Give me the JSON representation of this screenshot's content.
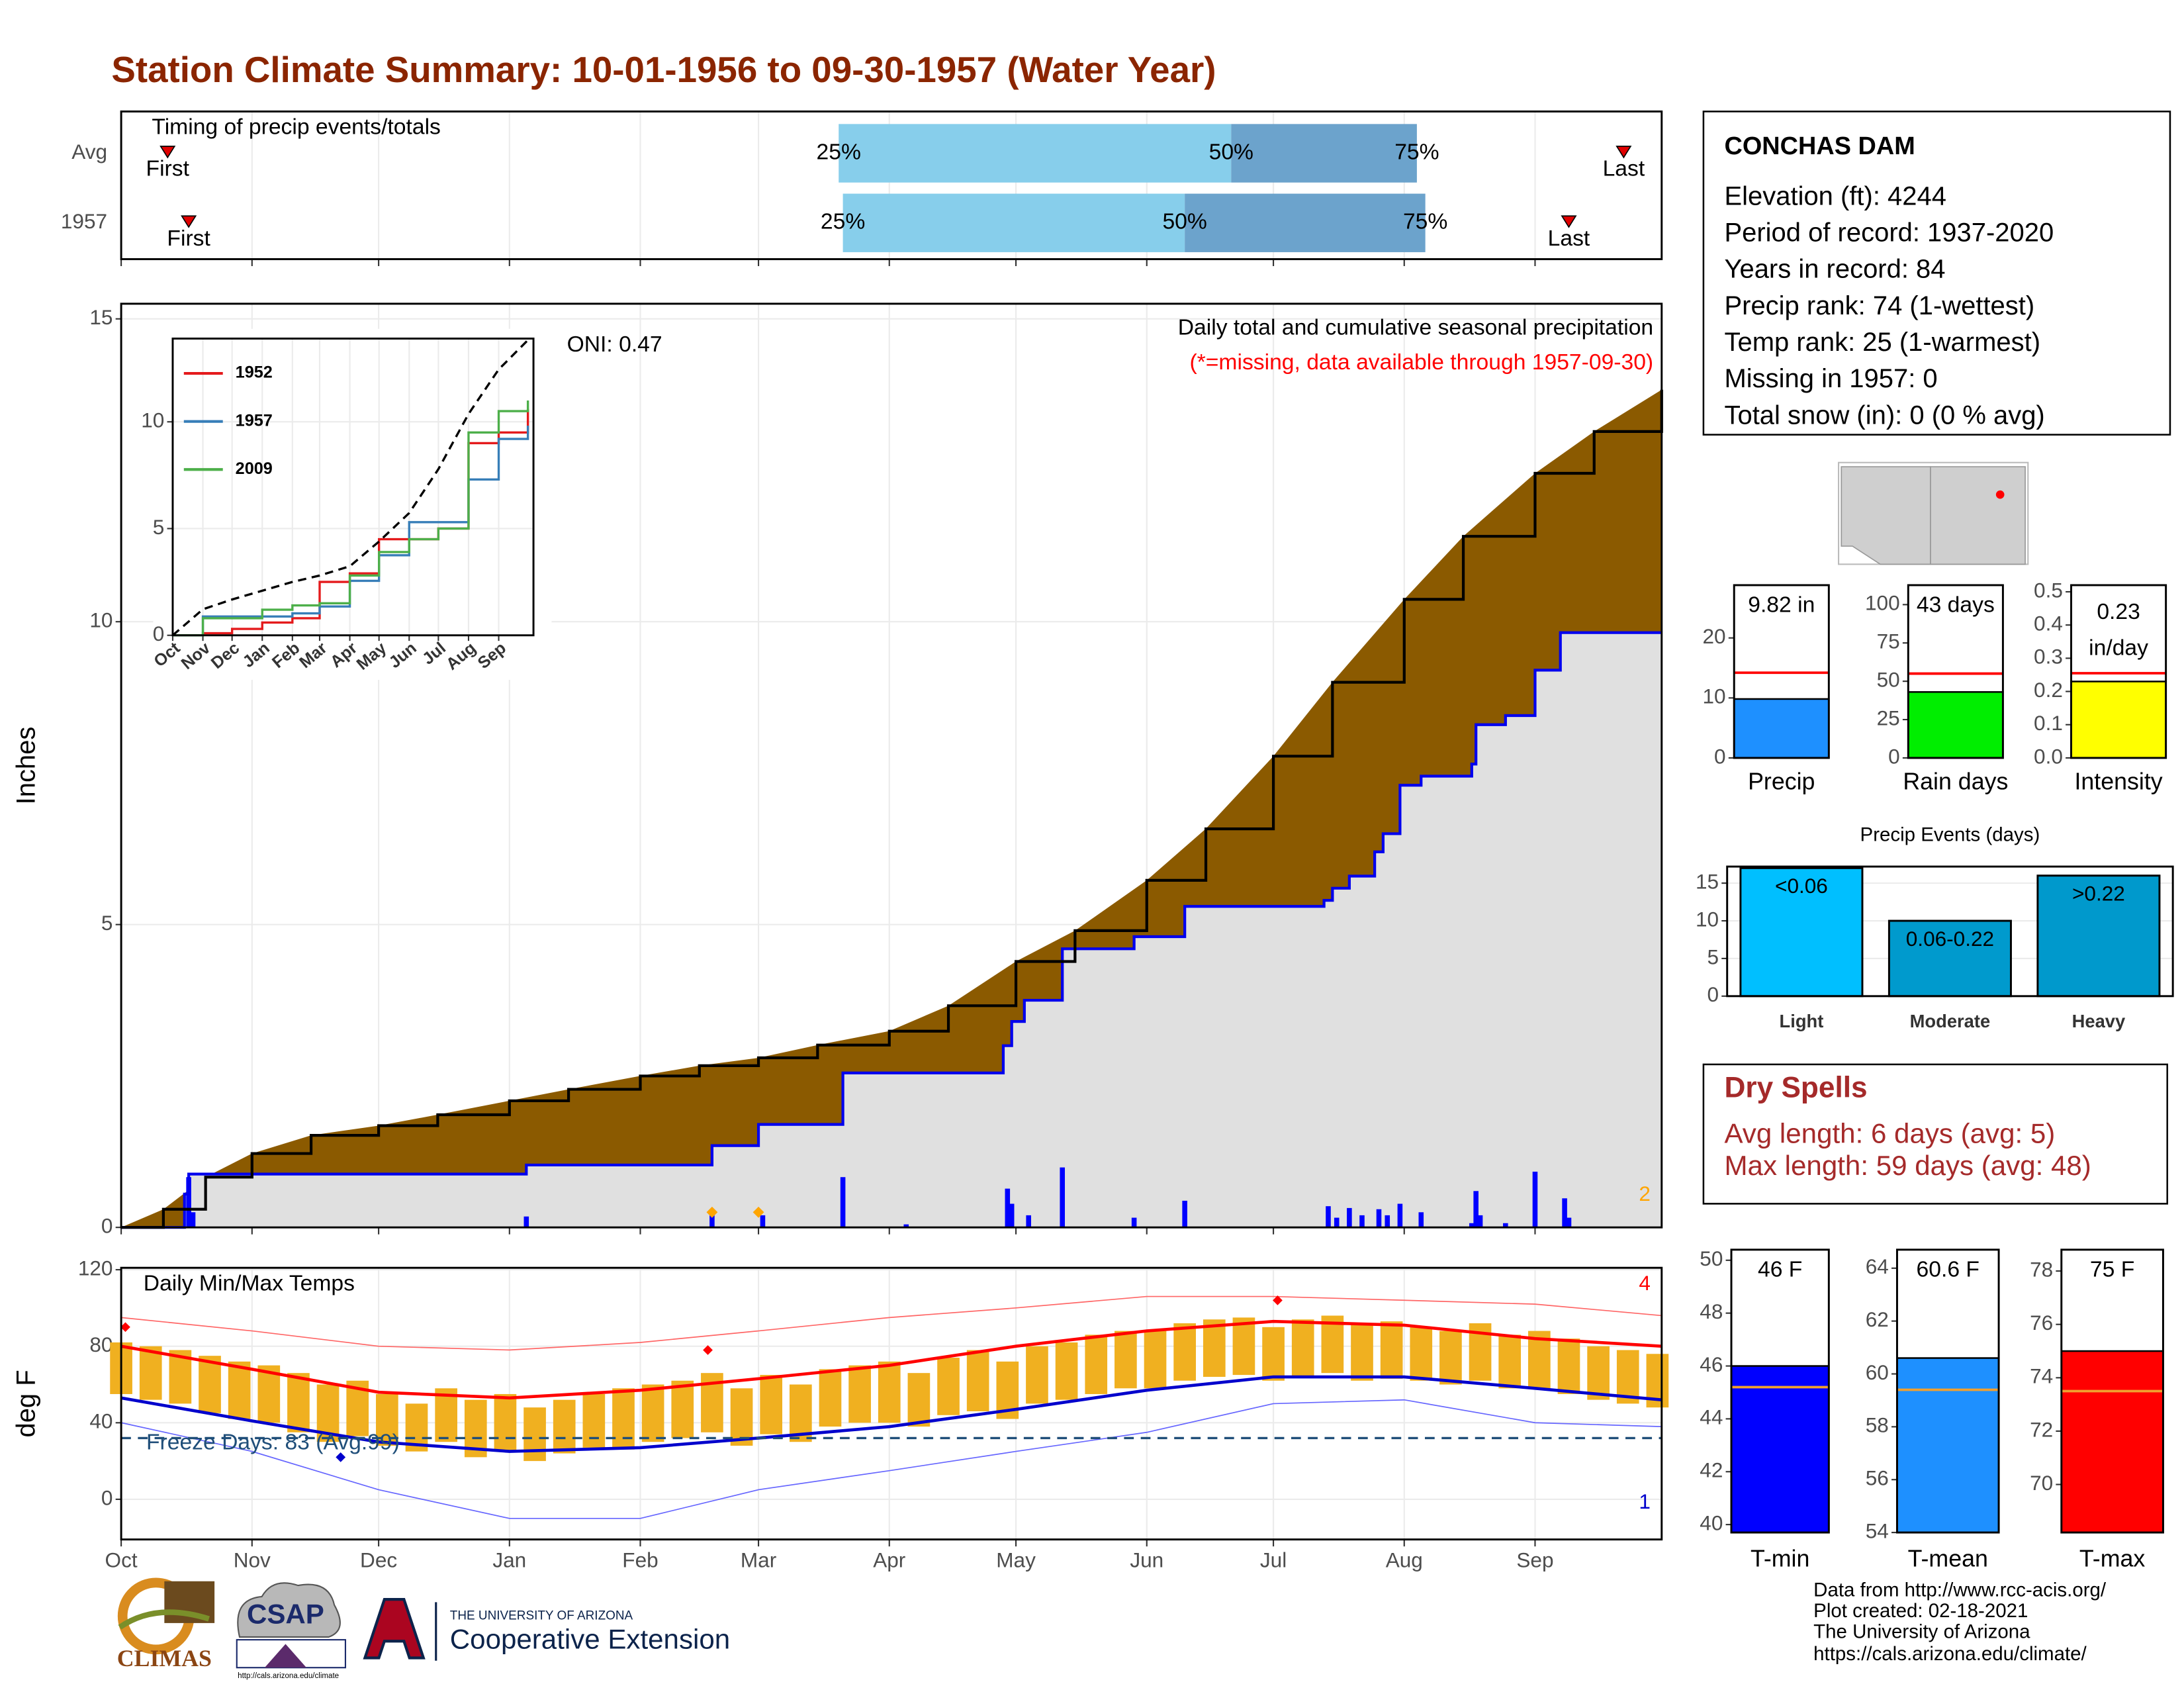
{
  "title": "Station Climate Summary: 10-01-1956 to 09-30-1957 (Water Year)",
  "station": {
    "name": "CONCHAS DAM",
    "lines": [
      "Elevation (ft): 4244",
      "Period of record: 1937-2020",
      "Years in record: 84",
      "Precip rank: 74 (1-wettest)",
      "Temp rank: 25 (1-warmest)",
      "Missing in 1957: 0",
      "Total snow (in): 0 (0 % avg)"
    ]
  },
  "dry_spells": {
    "title": "Dry Spells",
    "lines": [
      "Avg length: 6 days (avg: 5)",
      "Max length: 59 days (avg: 48)"
    ]
  },
  "credits": [
    "Data from http://www.rcc-acis.org/",
    "Plot created: 02-18-2021",
    "The University of Arizona",
    "https://cals.arizona.edu/climate/"
  ],
  "logos": {
    "climas": "CLIMAS",
    "csap": "CSAP",
    "csap_url": "http://cals.arizona.edu/climate",
    "ua": "THE UNIVERSITY OF ARIZONA",
    "extension": "Cooperative Extension"
  },
  "chart_data": [
    {
      "type": "timing",
      "title": "Timing of precip events/totals",
      "xlim": [
        0,
        365
      ],
      "series": [
        {
          "name": "Avg",
          "values": [
            11,
            170,
            263,
            307,
            356
          ],
          "value_labels": [
            "First",
            "25%",
            "50%",
            "75%",
            "Last"
          ]
        },
        {
          "name": "1957",
          "values": [
            16,
            171,
            252,
            309,
            343
          ],
          "value_labels": [
            "First",
            "25%",
            "50%",
            "75%",
            "Last"
          ]
        }
      ],
      "colors": [
        "#87ceeb",
        "#6ca3cc",
        "#e00000"
      ]
    },
    {
      "type": "cumulative",
      "title": "Daily total and cumulative seasonal precipitation",
      "subtitle": "(*=missing, data available through 1957-09-30)",
      "y_label": "Inches",
      "oni": "ONI: 0.47",
      "note": "2",
      "xlim": [
        0,
        365
      ],
      "ylim": [
        0,
        15.25
      ],
      "yticks": [
        0,
        5,
        10,
        15
      ],
      "grid": true,
      "average": {
        "color": "#8b5a00",
        "x": [
          0,
          10,
          20,
          31,
          45,
          61,
          75,
          92,
          106,
          123,
          137,
          151,
          165,
          182,
          196,
          212,
          226,
          243,
          257,
          273,
          287,
          304,
          318,
          335,
          349,
          365
        ],
        "values": [
          0,
          0.3,
          0.83,
          1.22,
          1.52,
          1.68,
          1.86,
          2.09,
          2.28,
          2.5,
          2.67,
          2.8,
          3.01,
          3.24,
          3.66,
          4.39,
          4.9,
          5.73,
          6.58,
          7.78,
          9.0,
          10.37,
          11.41,
          12.45,
          13.14,
          13.83
        ]
      },
      "year": {
        "color": "#0000ee",
        "fill": "#e0e0e0",
        "x": [
          0,
          15,
          16,
          96,
          140,
          151,
          171,
          209,
          211,
          214,
          223,
          240,
          252,
          285,
          287,
          291,
          297,
          299,
          303,
          308,
          320,
          321,
          328,
          335,
          341,
          365
        ],
        "values": [
          0,
          0.55,
          0.88,
          1.03,
          1.35,
          1.7,
          2.55,
          3.0,
          3.4,
          3.75,
          4.6,
          4.8,
          5.3,
          5.4,
          5.6,
          5.8,
          6.2,
          6.5,
          7.3,
          7.45,
          7.65,
          8.3,
          8.45,
          9.2,
          9.82,
          9.82
        ]
      },
      "daily": {
        "color": "#0000ff",
        "x": [
          16,
          17,
          96,
          140,
          152,
          171,
          186,
          210,
          211,
          215,
          223,
          240,
          252,
          286,
          288,
          291,
          294,
          298,
          300,
          303,
          308,
          320,
          321,
          322,
          328,
          335,
          342,
          343
        ],
        "values": [
          0.83,
          0.25,
          0.18,
          0.2,
          0.2,
          0.83,
          0.05,
          0.64,
          0.39,
          0.2,
          0.99,
          0.16,
          0.44,
          0.35,
          0.16,
          0.32,
          0.2,
          0.3,
          0.2,
          0.39,
          0.25,
          0.07,
          0.6,
          0.2,
          0.07,
          0.92,
          0.48,
          0.16
        ]
      },
      "snow": {
        "color": "#ffa500",
        "x": [
          140,
          151
        ],
        "values": [
          0.25,
          0.25
        ]
      }
    },
    {
      "type": "inset",
      "xlim": [
        0,
        365
      ],
      "ylim": [
        0,
        13.9
      ],
      "yticks": [
        0,
        5,
        10
      ],
      "xticks": [
        {
          "value": 0,
          "label": "Oct"
        },
        {
          "value": 31,
          "label": "Nov"
        },
        {
          "value": 61,
          "label": "Dec"
        },
        {
          "value": 92,
          "label": "Jan"
        },
        {
          "value": 123,
          "label": "Feb"
        },
        {
          "value": 151,
          "label": "Mar"
        },
        {
          "value": 182,
          "label": "Apr"
        },
        {
          "value": 212,
          "label": "May"
        },
        {
          "value": 243,
          "label": "Jun"
        },
        {
          "value": 273,
          "label": "Jul"
        },
        {
          "value": 304,
          "label": "Aug"
        },
        {
          "value": 335,
          "label": "Sep"
        }
      ],
      "x": [
        0,
        31,
        61,
        92,
        123,
        151,
        182,
        212,
        243,
        273,
        304,
        335,
        365
      ],
      "average": [
        0,
        1.22,
        1.68,
        2.09,
        2.5,
        2.8,
        3.24,
        4.39,
        5.73,
        7.78,
        10.37,
        12.45,
        13.83
      ],
      "series": [
        {
          "name": "1952",
          "color": "#e41a1c",
          "values": [
            0,
            0.1,
            0.3,
            0.6,
            0.8,
            2.5,
            2.9,
            4.5,
            4.5,
            5.0,
            9.0,
            9.5,
            10.6
          ]
        },
        {
          "name": "1957",
          "color": "#377eb8",
          "values": [
            0,
            0.88,
            0.88,
            0.88,
            1.03,
            1.35,
            2.55,
            3.75,
            5.3,
            5.3,
            7.3,
            9.2,
            9.82
          ]
        },
        {
          "name": "2009",
          "color": "#4daf4a",
          "values": [
            0,
            0.8,
            0.8,
            1.2,
            1.4,
            1.5,
            2.8,
            3.9,
            4.5,
            5.0,
            9.5,
            10.5,
            11.0
          ]
        }
      ]
    },
    {
      "type": "temperature",
      "title": "Daily Min/Max Temps",
      "y_label": "deg F",
      "freeze_label": "Freeze Days: 83 (Avg:99)",
      "freeze": 32,
      "high_count": "4",
      "low_count": "1",
      "xlim": [
        0,
        365
      ],
      "ylim": [
        -21,
        121
      ],
      "yticks": [
        0,
        40,
        80,
        120
      ],
      "grid": true,
      "xticks": [
        {
          "value": 0,
          "label": "Oct"
        },
        {
          "value": 31,
          "label": "Nov"
        },
        {
          "value": 61,
          "label": "Dec"
        },
        {
          "value": 92,
          "label": "Jan"
        },
        {
          "value": 123,
          "label": "Feb"
        },
        {
          "value": 151,
          "label": "Mar"
        },
        {
          "value": 182,
          "label": "Apr"
        },
        {
          "value": 212,
          "label": "May"
        },
        {
          "value": 243,
          "label": "Jun"
        },
        {
          "value": 273,
          "label": "Jul"
        },
        {
          "value": 304,
          "label": "Aug"
        },
        {
          "value": 335,
          "label": "Sep"
        }
      ],
      "daily": {
        "color": "#f0b020",
        "x": [
          0,
          7,
          14,
          21,
          28,
          35,
          42,
          49,
          56,
          63,
          70,
          77,
          84,
          91,
          98,
          105,
          112,
          119,
          126,
          133,
          140,
          147,
          154,
          161,
          168,
          175,
          182,
          189,
          196,
          203,
          210,
          217,
          224,
          231,
          238,
          245,
          252,
          259,
          266,
          273,
          280,
          287,
          294,
          301,
          308,
          315,
          322,
          329,
          336,
          343,
          350,
          357,
          364
        ],
        "max": [
          82,
          80,
          78,
          75,
          72,
          70,
          66,
          60,
          62,
          55,
          50,
          58,
          52,
          55,
          48,
          52,
          55,
          58,
          60,
          62,
          66,
          58,
          65,
          60,
          68,
          70,
          72,
          66,
          74,
          78,
          72,
          80,
          82,
          86,
          88,
          88,
          92,
          94,
          95,
          90,
          94,
          96,
          92,
          93,
          90,
          88,
          92,
          86,
          88,
          84,
          80,
          78,
          76
        ],
        "min": [
          55,
          52,
          50,
          45,
          42,
          40,
          35,
          30,
          33,
          28,
          25,
          30,
          22,
          25,
          20,
          24,
          27,
          26,
          30,
          32,
          35,
          28,
          34,
          30,
          38,
          40,
          40,
          38,
          44,
          46,
          42,
          50,
          52,
          55,
          58,
          58,
          62,
          64,
          65,
          62,
          64,
          66,
          62,
          63,
          62,
          60,
          62,
          58,
          58,
          55,
          52,
          50,
          48
        ]
      },
      "x": [
        0,
        31,
        61,
        92,
        123,
        151,
        182,
        212,
        243,
        273,
        304,
        335,
        365
      ],
      "avg_max": {
        "color": "#ff0000",
        "values": [
          80,
          68,
          56,
          53,
          57,
          63,
          70,
          80,
          88,
          93,
          91,
          84,
          80
        ]
      },
      "avg_min": {
        "color": "#0000cc",
        "values": [
          53,
          41,
          30,
          25,
          27,
          32,
          38,
          47,
          57,
          64,
          64,
          58,
          52
        ]
      },
      "record_high": {
        "color": "#ff6666",
        "values": [
          95,
          88,
          80,
          78,
          82,
          88,
          95,
          100,
          106,
          106,
          104,
          102,
          96
        ]
      },
      "record_low": {
        "color": "#6666ff",
        "values": [
          40,
          25,
          5,
          -10,
          -10,
          5,
          15,
          25,
          35,
          50,
          52,
          40,
          38
        ]
      },
      "record_highs": {
        "x": [
          1,
          139,
          274
        ],
        "values": [
          90,
          78,
          104
        ]
      },
      "record_lows": {
        "x": [
          52
        ],
        "values": [
          22
        ]
      }
    },
    {
      "type": "gauge",
      "label": "Precip",
      "value": 9.82,
      "value_labels": [
        "9.82 in"
      ],
      "average": 14.2,
      "ylim": [
        0,
        28.8
      ],
      "yticks": [
        0,
        10,
        20
      ],
      "color": "#1e90ff",
      "avg_color": "#ff0000"
    },
    {
      "type": "gauge",
      "label": "Rain days",
      "value": 43,
      "value_labels": [
        "43 days"
      ],
      "average": 55,
      "ylim": [
        0,
        112.7
      ],
      "yticks": [
        0,
        25,
        50,
        75,
        100
      ],
      "color": "#00ee00",
      "avg_color": "#ff0000"
    },
    {
      "type": "gauge",
      "label": "Intensity",
      "value": 0.23,
      "value_labels": [
        "0.23",
        "in/day"
      ],
      "average": 0.255,
      "ylim": [
        0,
        0.52
      ],
      "yticks": [
        {
          "value": 0,
          "label": "0.0"
        },
        0.1,
        0.2,
        0.3,
        0.4,
        0.5
      ],
      "color": "#ffff00",
      "avg_color": "#ff0000"
    },
    {
      "type": "bar",
      "title": "Precip Events (days)",
      "categories": [
        "Light",
        "Moderate",
        "Heavy"
      ],
      "values": [
        17,
        10,
        16
      ],
      "thresholds": [
        "<0.06",
        "0.06-0.22",
        ">0.22"
      ],
      "colors": [
        "#00bfff",
        "#009acd",
        "#0099cc"
      ],
      "ylim": [
        0,
        17.2
      ],
      "yticks": [
        0,
        5,
        10,
        15
      ],
      "grid": true
    },
    {
      "type": "gauge",
      "label": "T-min",
      "value": 46,
      "value_labels": [
        "46 F"
      ],
      "average": 45.2,
      "ylim": [
        39.7,
        50.4
      ],
      "yticks": [
        40,
        42,
        44,
        46,
        48,
        50
      ],
      "color": "#0000ff",
      "avg_color": "#f0a030"
    },
    {
      "type": "gauge",
      "label": "T-mean",
      "value": 60.6,
      "value_labels": [
        "60.6 F"
      ],
      "average": 59.4,
      "ylim": [
        54,
        64.7
      ],
      "yticks": [
        54,
        56,
        58,
        60,
        62,
        64
      ],
      "color": "#1e90ff",
      "avg_color": "#f0a030"
    },
    {
      "type": "gauge",
      "label": "T-max",
      "value": 75,
      "value_labels": [
        "75 F"
      ],
      "average": 73.5,
      "ylim": [
        68.2,
        78.8
      ],
      "yticks": [
        70,
        72,
        74,
        76,
        78
      ],
      "color": "#ff0000",
      "avg_color": "#f0a030"
    }
  ]
}
